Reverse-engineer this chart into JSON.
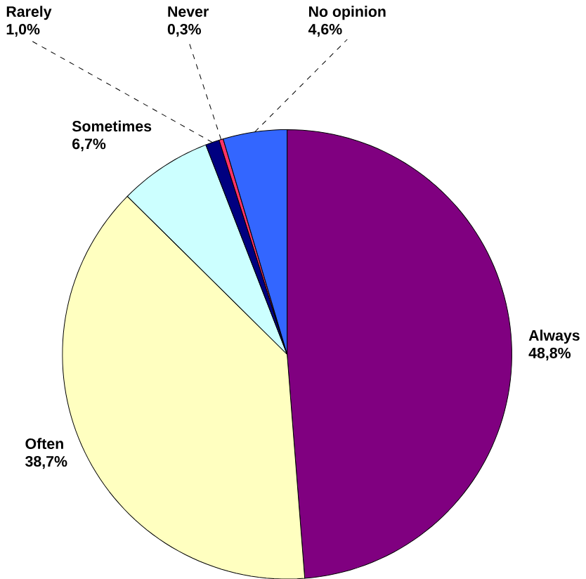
{
  "chart_data": {
    "type": "pie",
    "categories": [
      "Always",
      "Often",
      "Sometimes",
      "Rarely",
      "Never",
      "No opinion"
    ],
    "values": [
      48.8,
      38.7,
      6.7,
      1.0,
      0.3,
      4.6
    ],
    "value_labels": [
      "48,8%",
      "38,7%",
      "6,7%",
      "1,0%",
      "0,3%",
      "4,6%"
    ],
    "colors": [
      "#800080",
      "#ffffc0",
      "#ccffff",
      "#000080",
      "#ff3366",
      "#3366ff"
    ]
  }
}
